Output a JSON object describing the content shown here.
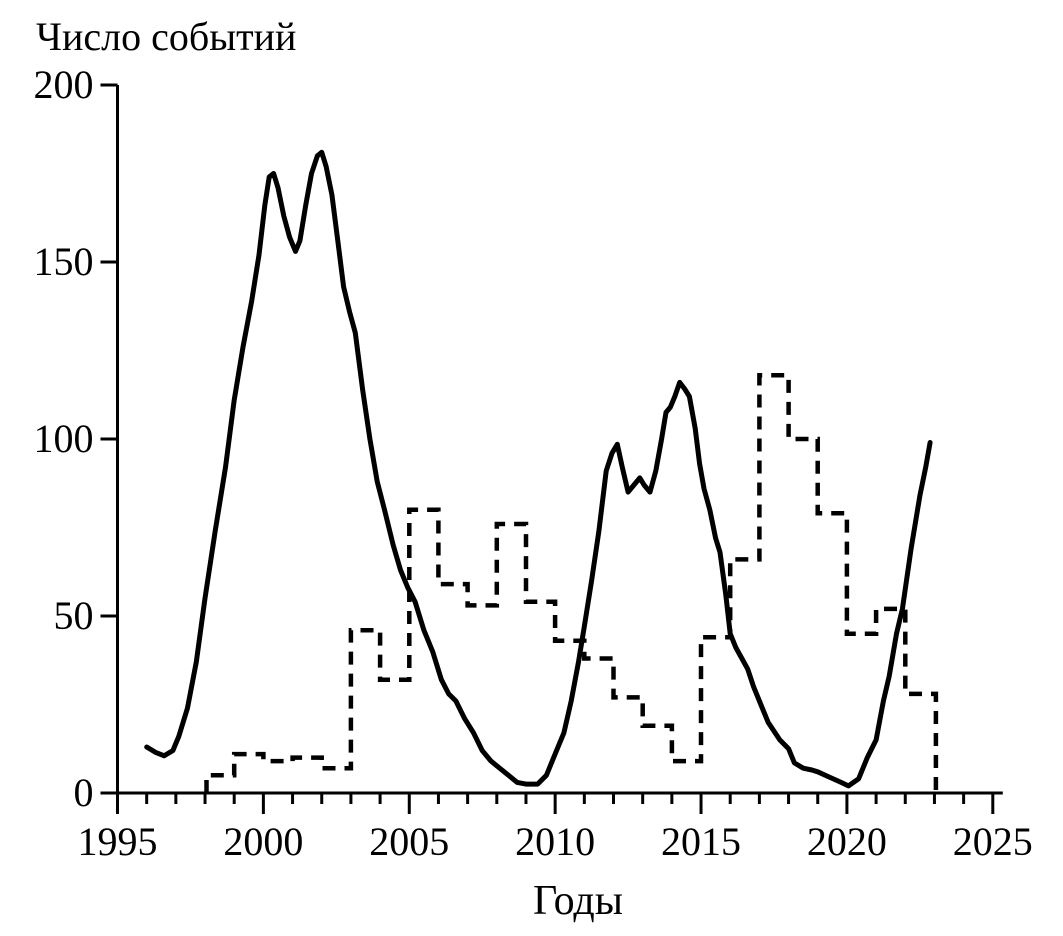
{
  "chart_data": {
    "type": "line",
    "title": "Число событий",
    "xlabel": "Годы",
    "ylabel": "",
    "xlim": [
      1995,
      2025
    ],
    "ylim": [
      0,
      200
    ],
    "x_major_ticks": [
      1995,
      2000,
      2005,
      2010,
      2015,
      2020,
      2025
    ],
    "x_minor_tick_step": 1,
    "y_ticks": [
      0,
      50,
      100,
      150,
      200
    ],
    "grid": false,
    "legend": "none",
    "axis_color": "#000000",
    "series": [
      {
        "name": "solid-curve",
        "style": "solid",
        "color": "#000000",
        "points": [
          [
            1996.0,
            13
          ],
          [
            1996.3,
            11.5
          ],
          [
            1996.6,
            10.5
          ],
          [
            1996.9,
            12
          ],
          [
            1997.1,
            16
          ],
          [
            1997.4,
            24
          ],
          [
            1997.7,
            37
          ],
          [
            1998.0,
            55
          ],
          [
            1998.35,
            74
          ],
          [
            1998.7,
            92
          ],
          [
            1999.0,
            111
          ],
          [
            1999.3,
            126
          ],
          [
            1999.6,
            139
          ],
          [
            1999.85,
            152
          ],
          [
            2000.05,
            166
          ],
          [
            2000.2,
            174
          ],
          [
            2000.35,
            175
          ],
          [
            2000.5,
            171
          ],
          [
            2000.7,
            163
          ],
          [
            2000.9,
            157
          ],
          [
            2001.1,
            153
          ],
          [
            2001.25,
            156
          ],
          [
            2001.45,
            166
          ],
          [
            2001.65,
            175
          ],
          [
            2001.85,
            180
          ],
          [
            2002.0,
            181
          ],
          [
            2002.15,
            177
          ],
          [
            2002.35,
            169
          ],
          [
            2002.55,
            156
          ],
          [
            2002.75,
            143
          ],
          [
            2002.95,
            136
          ],
          [
            2003.15,
            130
          ],
          [
            2003.4,
            114
          ],
          [
            2003.65,
            100
          ],
          [
            2003.9,
            88
          ],
          [
            2004.15,
            80
          ],
          [
            2004.45,
            70
          ],
          [
            2004.7,
            63
          ],
          [
            2004.95,
            58
          ],
          [
            2005.2,
            54
          ],
          [
            2005.5,
            46
          ],
          [
            2005.8,
            40
          ],
          [
            2006.1,
            32
          ],
          [
            2006.35,
            28
          ],
          [
            2006.6,
            26
          ],
          [
            2006.9,
            21
          ],
          [
            2007.2,
            17
          ],
          [
            2007.5,
            12
          ],
          [
            2007.8,
            9
          ],
          [
            2008.1,
            7
          ],
          [
            2008.4,
            5
          ],
          [
            2008.7,
            3
          ],
          [
            2009.0,
            2.5
          ],
          [
            2009.4,
            2.5
          ],
          [
            2009.7,
            5
          ],
          [
            2010.0,
            11
          ],
          [
            2010.3,
            17
          ],
          [
            2010.55,
            26
          ],
          [
            2010.8,
            37
          ],
          [
            2011.0,
            47
          ],
          [
            2011.25,
            60
          ],
          [
            2011.5,
            74
          ],
          [
            2011.75,
            91
          ],
          [
            2011.95,
            96
          ],
          [
            2012.13,
            98.5
          ],
          [
            2012.3,
            92
          ],
          [
            2012.5,
            85
          ],
          [
            2012.7,
            87
          ],
          [
            2012.9,
            89
          ],
          [
            2013.05,
            87
          ],
          [
            2013.25,
            85
          ],
          [
            2013.45,
            91
          ],
          [
            2013.65,
            100
          ],
          [
            2013.8,
            107.5
          ],
          [
            2013.95,
            109
          ],
          [
            2014.1,
            112
          ],
          [
            2014.27,
            116
          ],
          [
            2014.45,
            114
          ],
          [
            2014.6,
            112
          ],
          [
            2014.8,
            103
          ],
          [
            2014.95,
            93
          ],
          [
            2015.1,
            86
          ],
          [
            2015.3,
            80
          ],
          [
            2015.5,
            72
          ],
          [
            2015.65,
            68
          ],
          [
            2015.85,
            56
          ],
          [
            2016.0,
            45
          ],
          [
            2016.2,
            41
          ],
          [
            2016.4,
            38
          ],
          [
            2016.6,
            35
          ],
          [
            2016.8,
            30
          ],
          [
            2017.0,
            26
          ],
          [
            2017.3,
            20
          ],
          [
            2017.7,
            15
          ],
          [
            2018.0,
            12.5
          ],
          [
            2018.2,
            8.5
          ],
          [
            2018.5,
            7
          ],
          [
            2018.8,
            6.5
          ],
          [
            2019.0,
            6
          ],
          [
            2019.4,
            4.5
          ],
          [
            2019.8,
            3
          ],
          [
            2020.05,
            2
          ],
          [
            2020.4,
            4
          ],
          [
            2020.7,
            10
          ],
          [
            2021.0,
            15
          ],
          [
            2021.25,
            26
          ],
          [
            2021.45,
            33
          ],
          [
            2021.7,
            45
          ],
          [
            2021.9,
            52
          ],
          [
            2022.2,
            69
          ],
          [
            2022.5,
            84
          ],
          [
            2022.7,
            92
          ],
          [
            2022.85,
            99
          ]
        ]
      },
      {
        "name": "dashed-step-curve",
        "style": "dashed-step",
        "color": "#000000",
        "start_year": 1998.05,
        "start_value": 0,
        "steps": [
          [
            1998,
            5
          ],
          [
            1999,
            11
          ],
          [
            2000,
            9
          ],
          [
            2001,
            10
          ],
          [
            2002,
            7
          ],
          [
            2003,
            46
          ],
          [
            2004,
            32
          ],
          [
            2005,
            80
          ],
          [
            2006,
            59
          ],
          [
            2007,
            53
          ],
          [
            2008,
            76
          ],
          [
            2009,
            54
          ],
          [
            2010,
            43
          ],
          [
            2011,
            38
          ],
          [
            2012,
            27
          ],
          [
            2013,
            19
          ],
          [
            2014,
            9
          ],
          [
            2015,
            44
          ],
          [
            2016,
            66
          ],
          [
            2017,
            118
          ],
          [
            2018,
            100
          ],
          [
            2019,
            79
          ],
          [
            2020,
            45
          ],
          [
            2021,
            52
          ],
          [
            2022,
            28
          ]
        ],
        "end_year": 2023.05,
        "end_value": 0
      }
    ]
  }
}
